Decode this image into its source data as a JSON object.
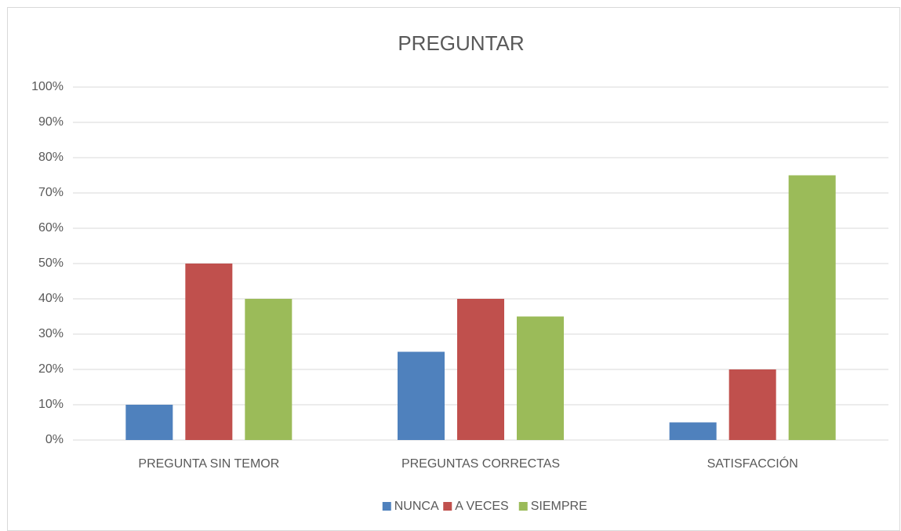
{
  "chart_data": {
    "type": "bar",
    "title": "PREGUNTAR",
    "categories": [
      "PREGUNTA SIN TEMOR",
      "PREGUNTAS CORRECTAS",
      "SATISFACCIÓN"
    ],
    "series": [
      {
        "name": "NUNCA",
        "color": "#4f81bd",
        "values": [
          10,
          25,
          5
        ]
      },
      {
        "name": "A VECES",
        "color": "#c0504d",
        "values": [
          50,
          40,
          20
        ]
      },
      {
        "name": "SIEMPRE",
        "color": "#9bbb59",
        "values": [
          40,
          35,
          75
        ]
      }
    ],
    "ylim": [
      0,
      100
    ],
    "yticks": [
      {
        "value": 0,
        "label": "0%"
      },
      {
        "value": 10,
        "label": "10%"
      },
      {
        "value": 20,
        "label": "20%"
      },
      {
        "value": 30,
        "label": "30%"
      },
      {
        "value": 40,
        "label": "40%"
      },
      {
        "value": 50,
        "label": "50%"
      },
      {
        "value": 60,
        "label": "60%"
      },
      {
        "value": 70,
        "label": "70%"
      },
      {
        "value": 80,
        "label": "80%"
      },
      {
        "value": 90,
        "label": "90%"
      },
      {
        "value": 100,
        "label": "100%"
      }
    ],
    "grid": true,
    "legend": "bottom"
  }
}
